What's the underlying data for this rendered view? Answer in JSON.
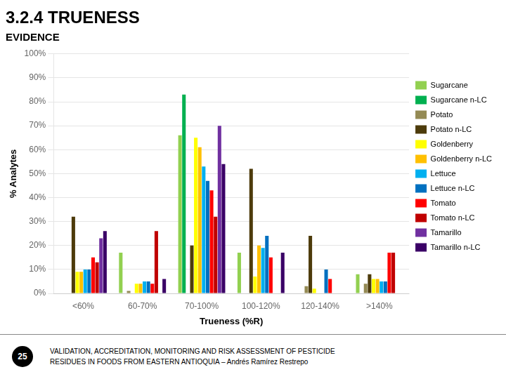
{
  "chart_data": {
    "type": "bar",
    "title": "3.2.4 TRUENESS",
    "subtitle": "EVIDENCE",
    "x_label": "Trueness (%R)",
    "y_label": "% Analytes",
    "categories": [
      "<60%",
      "60-70%",
      "70-100%",
      "100-120%",
      "120-140%",
      ">140%"
    ],
    "series": [
      {
        "name": "Sugarcane",
        "color": "#92D050",
        "values": [
          0,
          17,
          66,
          17,
          0,
          8
        ]
      },
      {
        "name": "Sugarcane n-LC",
        "color": "#00B050",
        "values": [
          0,
          0,
          83,
          0,
          0,
          0
        ]
      },
      {
        "name": "Potato",
        "color": "#948A54",
        "values": [
          0,
          1,
          0,
          0,
          3,
          4
        ]
      },
      {
        "name": "Potato n-LC",
        "color": "#4D3B0B",
        "values": [
          32,
          0,
          20,
          52,
          24,
          8
        ]
      },
      {
        "name": "Goldenberry",
        "color": "#FFFF00",
        "values": [
          9,
          4,
          65,
          7,
          2,
          6
        ]
      },
      {
        "name": "Goldenberry n-LC",
        "color": "#FFC000",
        "values": [
          9,
          4,
          61,
          20,
          0,
          6
        ]
      },
      {
        "name": "Lettuce",
        "color": "#00B0F0",
        "values": [
          10,
          5,
          53,
          19,
          0,
          5
        ]
      },
      {
        "name": "Lettuce n-LC",
        "color": "#0070C0",
        "values": [
          10,
          5,
          47,
          24,
          10,
          5
        ]
      },
      {
        "name": "Tomato",
        "color": "#FF0000",
        "values": [
          15,
          4,
          43,
          15,
          6,
          17
        ]
      },
      {
        "name": "Tomato n-LC",
        "color": "#C00000",
        "values": [
          13,
          26,
          32,
          0,
          0,
          17
        ]
      },
      {
        "name": "Tamarillo",
        "color": "#7030A0",
        "values": [
          23,
          0,
          70,
          0,
          0,
          0
        ]
      },
      {
        "name": "Tamarillo n-LC",
        "color": "#3A0066",
        "values": [
          26,
          6,
          54,
          17,
          0,
          0
        ]
      }
    ],
    "ylim": [
      0,
      100
    ],
    "yticks": [
      {
        "value": 0,
        "label": "0%"
      },
      {
        "value": 10,
        "label": "10%"
      },
      {
        "value": 20,
        "label": "20%"
      },
      {
        "value": 30,
        "label": "30%"
      },
      {
        "value": 40,
        "label": "40%"
      },
      {
        "value": 50,
        "label": "50%"
      },
      {
        "value": 60,
        "label": "60%"
      },
      {
        "value": 70,
        "label": "70%"
      },
      {
        "value": 80,
        "label": "80%"
      },
      {
        "value": 90,
        "label": "90%"
      },
      {
        "value": 100,
        "label": "100%"
      }
    ],
    "grid": "y",
    "legend": "right",
    "annotations": [
      "25",
      "VALIDATION, ACCREDITATION, MONITORING AND RISK ASSESSMENT OF PESTICIDE",
      "RESIDUES IN FOODS FROM EASTERN ANTIOQUIA – Andrés Ramírez Restrepo"
    ]
  }
}
